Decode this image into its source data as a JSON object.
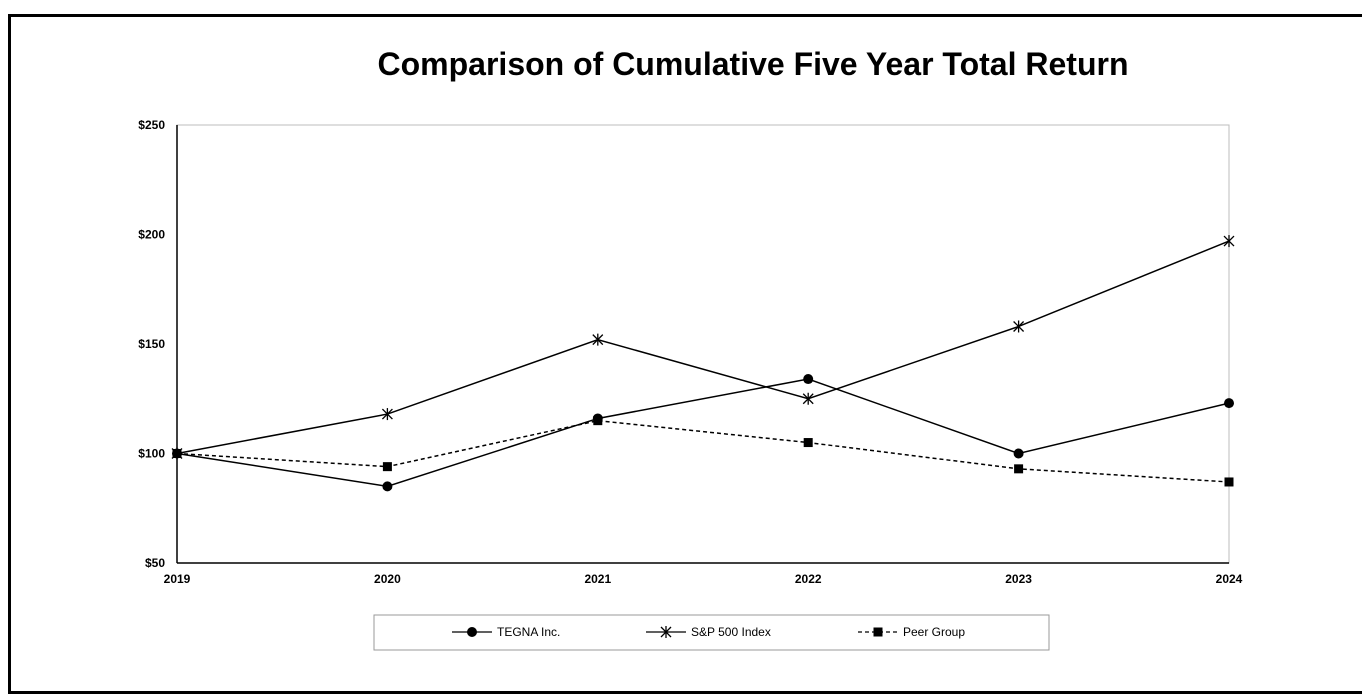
{
  "chart_data": {
    "type": "line",
    "title": "Comparison of Cumulative Five Year Total Return",
    "x": [
      "2019",
      "2020",
      "2021",
      "2022",
      "2023",
      "2024"
    ],
    "y_ticks": [
      "$50",
      "$100",
      "$150",
      "$200",
      "$250"
    ],
    "ylim": [
      50,
      250
    ],
    "grid": false,
    "legend_position": "bottom",
    "series": [
      {
        "name": "TEGNA Inc.",
        "marker": "circle",
        "dash": "solid",
        "values": [
          100,
          85,
          116,
          134,
          100,
          123
        ]
      },
      {
        "name": "S&P 500 Index",
        "marker": "asterisk",
        "dash": "solid",
        "values": [
          100,
          118,
          152,
          125,
          158,
          197
        ]
      },
      {
        "name": "Peer Group",
        "marker": "square",
        "dash": "dashed",
        "values": [
          100,
          94,
          115,
          105,
          93,
          87
        ]
      }
    ]
  }
}
